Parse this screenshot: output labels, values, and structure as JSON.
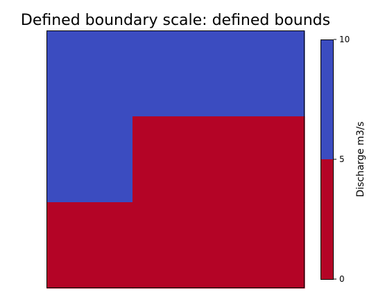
{
  "chart_data": {
    "type": "heatmap",
    "title": "Defined boundary scale: defined bounds",
    "grid": false,
    "values": [
      [
        7.5,
        7.5,
        7.5
      ],
      [
        7.5,
        2.5,
        2.5
      ],
      [
        2.5,
        2.5,
        2.5
      ]
    ],
    "colorbar": {
      "label": "Discharge m3/s",
      "boundaries": [
        0,
        5,
        10
      ],
      "tick_labels": [
        "0",
        "5",
        "10"
      ],
      "colors": [
        "#b40426",
        "#3b4cc0"
      ]
    }
  }
}
